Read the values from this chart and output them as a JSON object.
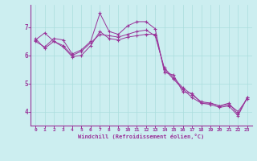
{
  "xlabel": "Windchill (Refroidissement éolien,°C)",
  "background_color": "#cceef0",
  "line_color": "#993399",
  "grid_color": "#aadddd",
  "xlim": [
    -0.5,
    23.5
  ],
  "ylim": [
    3.5,
    7.8
  ],
  "yticks": [
    4,
    5,
    6,
    7
  ],
  "xticks": [
    0,
    1,
    2,
    3,
    4,
    5,
    6,
    7,
    8,
    9,
    10,
    11,
    12,
    13,
    14,
    15,
    16,
    17,
    18,
    19,
    20,
    21,
    22,
    23
  ],
  "series": [
    [
      6.5,
      6.3,
      6.6,
      6.55,
      6.05,
      6.2,
      6.5,
      7.5,
      6.85,
      6.75,
      7.05,
      7.2,
      7.2,
      6.95,
      5.4,
      5.3,
      4.7,
      4.65,
      4.3,
      4.3,
      4.2,
      4.3,
      3.9,
      4.5
    ],
    [
      6.55,
      6.8,
      6.5,
      6.35,
      6.0,
      6.15,
      6.45,
      6.75,
      6.7,
      6.65,
      6.75,
      6.85,
      6.9,
      6.7,
      5.55,
      5.2,
      4.85,
      4.6,
      4.35,
      4.3,
      4.2,
      4.25,
      4.0,
      4.45
    ],
    [
      6.6,
      6.25,
      6.5,
      6.3,
      5.95,
      6.0,
      6.35,
      6.85,
      6.6,
      6.55,
      6.65,
      6.7,
      6.75,
      6.75,
      5.5,
      5.15,
      4.8,
      4.5,
      4.3,
      4.25,
      4.15,
      4.2,
      3.85,
      4.5
    ]
  ]
}
